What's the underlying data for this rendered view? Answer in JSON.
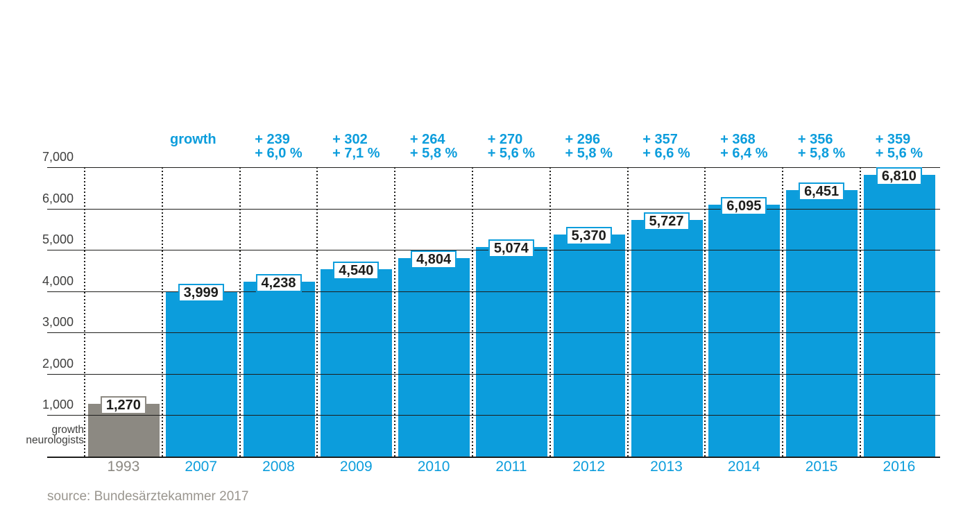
{
  "chart_data": {
    "type": "bar",
    "categories": [
      "1993",
      "2007",
      "2008",
      "2009",
      "2010",
      "2011",
      "2012",
      "2013",
      "2014",
      "2015",
      "2016"
    ],
    "values": [
      1270,
      3999,
      4238,
      4540,
      4804,
      5074,
      5370,
      5727,
      6095,
      6451,
      6810
    ],
    "value_labels": [
      "1,270",
      "3,999",
      "4,238",
      "4,540",
      "4,804",
      "5,074",
      "5,370",
      "5,727",
      "6,095",
      "6,451",
      "6,810"
    ],
    "growth_header": "growth",
    "growth_labels": [
      {
        "category": "2008",
        "absolute": "+ 239",
        "percent": "+ 6,0 %"
      },
      {
        "category": "2009",
        "absolute": "+ 302",
        "percent": "+ 7,1 %"
      },
      {
        "category": "2010",
        "absolute": "+ 264",
        "percent": "+ 5,8 %"
      },
      {
        "category": "2011",
        "absolute": "+ 270",
        "percent": "+ 5,6 %"
      },
      {
        "category": "2012",
        "absolute": "+ 296",
        "percent": "+ 5,8 %"
      },
      {
        "category": "2013",
        "absolute": "+ 357",
        "percent": "+ 6,6 %"
      },
      {
        "category": "2014",
        "absolute": "+ 368",
        "percent": "+ 6,4 %"
      },
      {
        "category": "2015",
        "absolute": "+ 356",
        "percent": "+ 5,8 %"
      },
      {
        "category": "2016",
        "absolute": "+ 359",
        "percent": "+ 5,6 %"
      }
    ],
    "y_ticks": [
      "7,000",
      "6,000",
      "5,000",
      "4,000",
      "3,000",
      "2,000",
      "1,000"
    ],
    "ylim": [
      0,
      7000
    ],
    "grid": "horizontal solid lines every 1000, dotted vertical column separators",
    "legend_position": "none",
    "axis_caption_line1": "growth",
    "axis_caption_line2": "neurologists",
    "source": "source: Bundesärztekammer 2017",
    "colors": {
      "bar_blue": "#0c9ddc",
      "bar_gray": "#8c8982",
      "value_text": "#1d1d1b",
      "axis_text": "#3f3f3e",
      "gridline": "#1d1d1b",
      "source_text": "#9a968f"
    }
  }
}
